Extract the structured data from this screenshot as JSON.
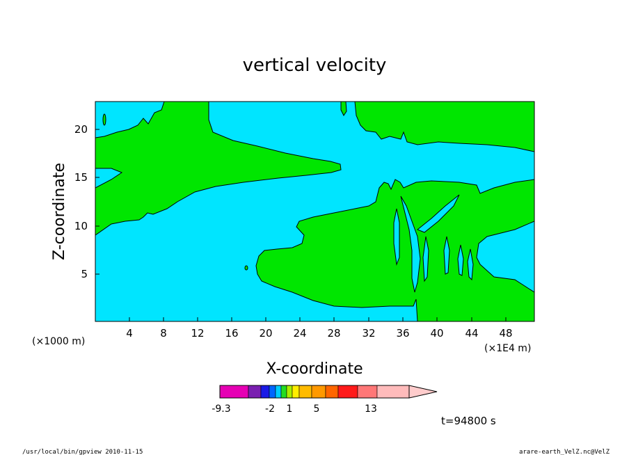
{
  "chart_data": {
    "type": "contour",
    "title": "vertical velocity",
    "xlabel": "X-coordinate",
    "ylabel": "Z-coordinate",
    "x_unit": "(×1000 m)",
    "x_unit_right": "(×1E4 m)",
    "x_ticks": [
      "4",
      "8",
      "12",
      "16",
      "20",
      "24",
      "28",
      "32",
      "36",
      "40",
      "44",
      "48"
    ],
    "y_ticks": [
      "5",
      "10",
      "15",
      "20"
    ],
    "xlim": [
      0,
      52
    ],
    "ylim": [
      0,
      23
    ],
    "background_level_color": "#00e5ff",
    "contour_fill_color": "#00e600",
    "colorbar": {
      "colors": [
        "#e600b4",
        "#7a1fb0",
        "#1a1ae6",
        "#0066ff",
        "#00ccff",
        "#22dd22",
        "#aaee00",
        "#ffee00",
        "#ffbb00",
        "#ff9900",
        "#ff6600",
        "#ff1a1a",
        "#ff7777",
        "#ffbbbb",
        "#ffcccc"
      ],
      "labels": [
        "-9.3",
        "-2",
        "1",
        "5",
        "13"
      ]
    },
    "time_label": "t=94800 s"
  },
  "footer": {
    "left": "/usr/local/bin/gpview  2010-11-15",
    "right": "arare-earth_VelZ.nc@VelZ"
  }
}
